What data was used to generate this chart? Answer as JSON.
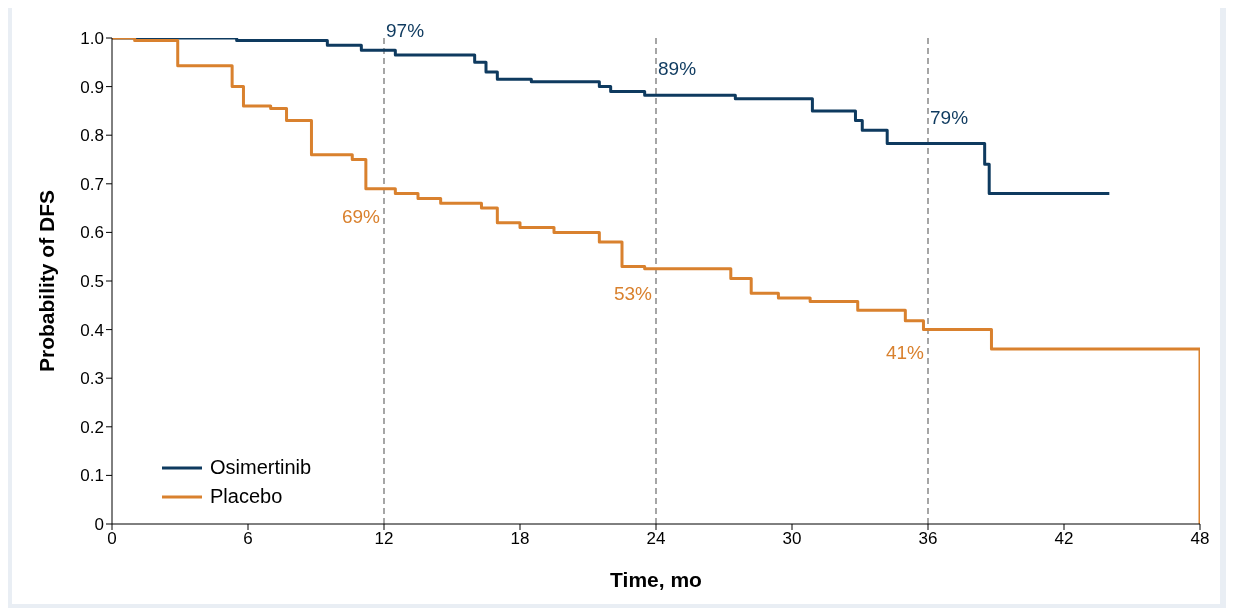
{
  "chart_data": {
    "type": "step",
    "xlabel": "Time, mo",
    "ylabel": "Probability of DFS",
    "xlim": [
      0,
      48
    ],
    "xticks": [
      0,
      6,
      12,
      18,
      24,
      30,
      36,
      42,
      48
    ],
    "ylim": [
      0,
      1
    ],
    "yticks": [
      0,
      0.1,
      0.2,
      0.3,
      0.4,
      0.5,
      0.6,
      0.7,
      0.8,
      0.9,
      {
        "value": 1,
        "label": "1.0"
      }
    ],
    "grid": false,
    "legend": "bottom left",
    "line_style": "solid",
    "series": [
      {
        "name": "Osimertinib",
        "color": "#0e3a5f",
        "x": [
          0,
          5.5,
          9.5,
          11,
          12.5,
          16,
          16.5,
          17,
          18.5,
          21.5,
          22,
          23.5,
          27.5,
          30.9,
          32.8,
          33.1,
          34.2,
          38.5,
          38.7,
          44
        ],
        "values": [
          1,
          0.995,
          0.985,
          0.975,
          0.965,
          0.95,
          0.93,
          0.915,
          0.91,
          0.9,
          0.89,
          0.882,
          0.875,
          0.85,
          0.83,
          0.81,
          0.783,
          0.74,
          0.68,
          0.68
        ]
      },
      {
        "name": "Placebo",
        "color": "#d9812e",
        "x": [
          0,
          1,
          2.9,
          5.3,
          5.8,
          7,
          7.7,
          8.8,
          10.6,
          11.2,
          12.5,
          13.5,
          14.5,
          16.3,
          17,
          18,
          19.5,
          21.5,
          22.5,
          23.5,
          27.3,
          28.2,
          29.4,
          30.8,
          32.9,
          35,
          35.8,
          38.8,
          48,
          48
        ],
        "values": [
          1,
          0.995,
          0.943,
          0.9,
          0.86,
          0.855,
          0.83,
          0.76,
          0.75,
          0.69,
          0.68,
          0.67,
          0.66,
          0.65,
          0.62,
          0.61,
          0.6,
          0.58,
          0.53,
          0.525,
          0.505,
          0.475,
          0.465,
          0.458,
          0.44,
          0.418,
          0.4,
          0.36,
          0.36,
          0
        ]
      }
    ],
    "ref_lines": [
      {
        "axis": "x",
        "value": 12,
        "color": "#a6a6a6",
        "line_style": "dashed"
      },
      {
        "axis": "x",
        "value": 24,
        "color": "#a6a6a6",
        "line_style": "dashed"
      },
      {
        "axis": "x",
        "value": 36,
        "color": "#a6a6a6",
        "line_style": "dashed"
      }
    ],
    "annotations": [
      {
        "text": "97%",
        "x": 12,
        "y": 0.97
      },
      {
        "text": "89%",
        "x": 24,
        "y": 0.89
      },
      {
        "text": "79%",
        "x": 36,
        "y": 0.79
      },
      {
        "text": "69%",
        "x": 12,
        "y": 0.69
      },
      {
        "text": "53%",
        "x": 24,
        "y": 0.53
      },
      {
        "text": "41%",
        "x": 36,
        "y": 0.41
      }
    ]
  }
}
